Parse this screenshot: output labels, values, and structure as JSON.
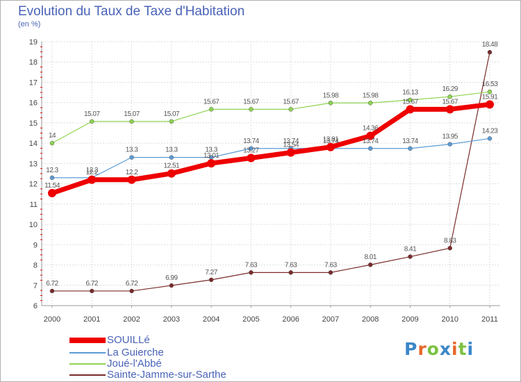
{
  "title": "Evolution du Taux de Taxe d'Habitation",
  "unit_label": "(en %)",
  "logo": {
    "letters": [
      "P",
      "r",
      "o",
      "x",
      "i",
      "t",
      "i"
    ],
    "colors": [
      "#3a86c8",
      "#e8662a",
      "#7cc242",
      "#3a86c8",
      "#e8662a",
      "#7cc242",
      "#3a86c8"
    ]
  },
  "chart_data": {
    "type": "line",
    "x": [
      "2000",
      "2001",
      "2002",
      "2003",
      "2004",
      "2005",
      "2006",
      "2007",
      "2008",
      "2009",
      "2010",
      "2011"
    ],
    "ylim": [
      6,
      19
    ],
    "yticks": [
      "6",
      "7",
      "8",
      "9",
      "10",
      "11",
      "12",
      "13",
      "14",
      "15",
      "16",
      "17",
      "18",
      "19"
    ],
    "grid": true,
    "legend_position": "bottom-left",
    "series": [
      {
        "name": "SOUILLé",
        "color": "#ee0000",
        "values": [
          11.54,
          12.2,
          12.2,
          12.51,
          13.01,
          13.27,
          13.54,
          13.81,
          14.36,
          15.67,
          15.67,
          15.91
        ],
        "labels": [
          "11.54",
          "12.2",
          "12.2",
          "12.51",
          "13.01",
          "13.27",
          "13.54",
          "13.81",
          "14.36",
          "15.67",
          "15.67",
          "15.91"
        ]
      },
      {
        "name": "La Guierche",
        "color": "#5b9bd5",
        "values": [
          12.3,
          12.3,
          13.3,
          13.3,
          13.3,
          13.74,
          13.74,
          13.74,
          13.74,
          13.74,
          13.95,
          14.23
        ],
        "labels": [
          "12.3",
          "12.3",
          "13.3",
          "13.3",
          "13.3",
          "13.74",
          "13.74",
          "13.74",
          "13.74",
          "13.74",
          "13.95",
          "14.23"
        ]
      },
      {
        "name": "Joué-l'Abbé",
        "color": "#8ed450",
        "values": [
          14,
          15.07,
          15.07,
          15.07,
          15.67,
          15.67,
          15.67,
          15.98,
          15.98,
          16.13,
          16.29,
          16.53
        ],
        "labels": [
          "14",
          "15.07",
          "15.07",
          "15.07",
          "15.67",
          "15.67",
          "15.67",
          "15.98",
          "15.98",
          "16.13",
          "16.29",
          "16.53"
        ]
      },
      {
        "name": "Sainte-Jamme-sur-Sarthe",
        "color": "#7a2a2a",
        "values": [
          6.72,
          6.72,
          6.72,
          6.99,
          7.27,
          7.63,
          7.63,
          7.63,
          8.01,
          8.41,
          8.83,
          18.48
        ],
        "labels": [
          "6.72",
          "6.72",
          "6.72",
          "6.99",
          "7.27",
          "7.63",
          "7.63",
          "7.63",
          "8.01",
          "8.41",
          "8.83",
          "18.48"
        ]
      }
    ]
  }
}
